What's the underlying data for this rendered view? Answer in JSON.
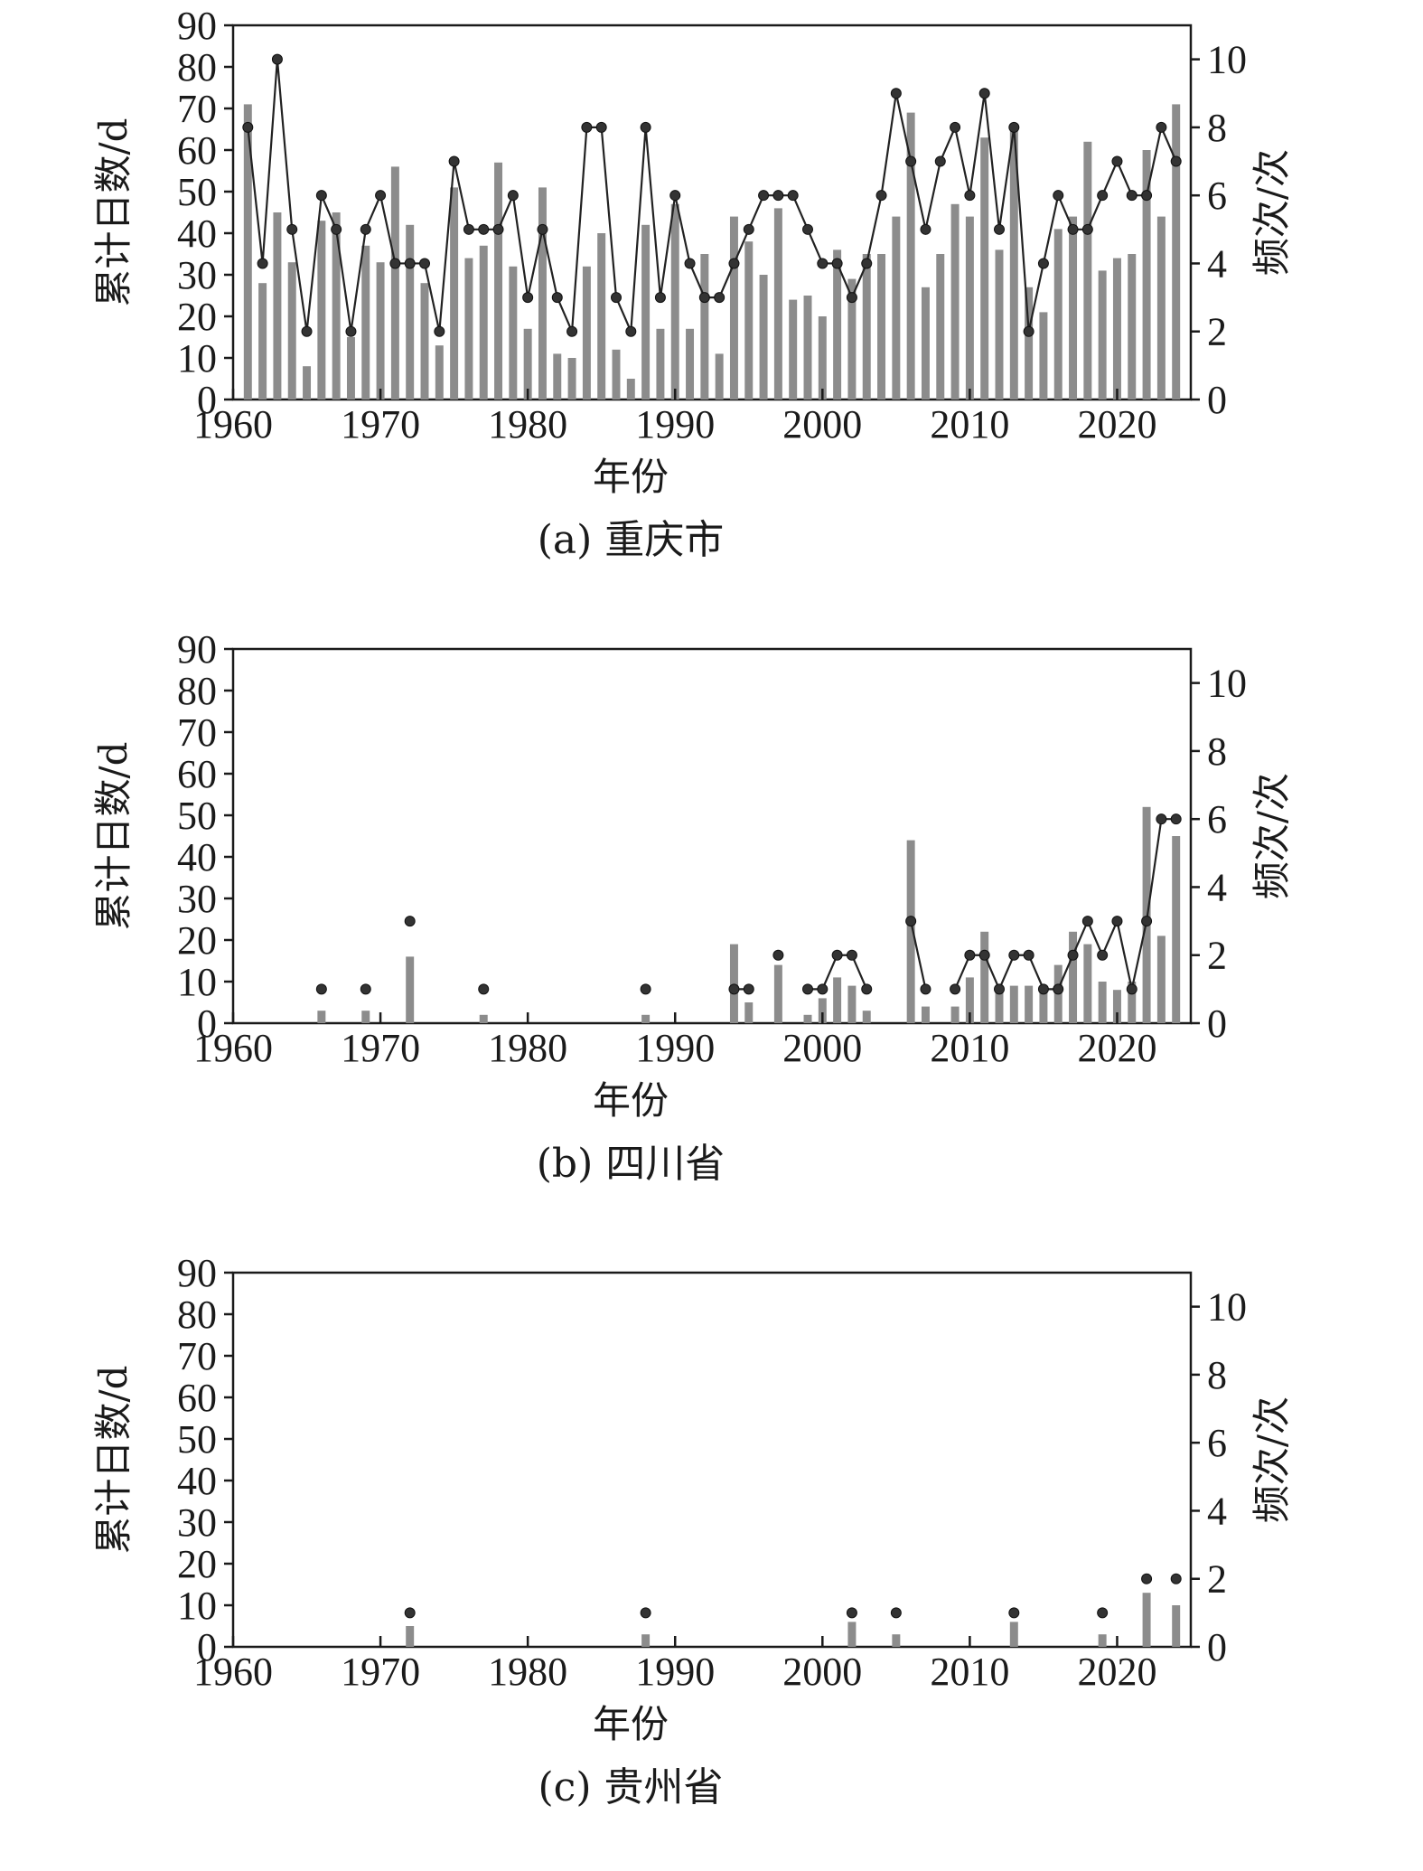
{
  "chart_data": [
    {
      "type": "bar",
      "caption": "(a) 重庆市",
      "xlabel": "年份",
      "ylabel_left": "累计日数/d",
      "ylabel_right": "频次/次",
      "x_ticks": [
        1960,
        1970,
        1980,
        1990,
        2000,
        2010,
        2020
      ],
      "y_ticks_left": [
        0,
        10,
        20,
        30,
        40,
        50,
        60,
        70,
        80,
        90
      ],
      "y_ticks_right": [
        0,
        2,
        4,
        6,
        8,
        10
      ],
      "xlim": [
        1960,
        2025
      ],
      "ylim_left": [
        0,
        90
      ],
      "ylim_right": [
        0,
        11
      ],
      "series": [
        {
          "name": "累计日数",
          "kind": "bar",
          "axis": "left",
          "color": "#8c8c8c",
          "x": [
            1961,
            1962,
            1963,
            1964,
            1965,
            1966,
            1967,
            1968,
            1969,
            1970,
            1971,
            1972,
            1973,
            1974,
            1975,
            1976,
            1977,
            1978,
            1979,
            1980,
            1981,
            1982,
            1983,
            1984,
            1985,
            1986,
            1987,
            1988,
            1989,
            1990,
            1991,
            1992,
            1993,
            1994,
            1995,
            1996,
            1997,
            1998,
            1999,
            2000,
            2001,
            2002,
            2003,
            2004,
            2005,
            2006,
            2007,
            2008,
            2009,
            2010,
            2011,
            2012,
            2013,
            2014,
            2015,
            2016,
            2017,
            2018,
            2019,
            2020,
            2021,
            2022,
            2023,
            2024
          ],
          "values": [
            71,
            28,
            45,
            33,
            8,
            43,
            45,
            15,
            37,
            33,
            56,
            42,
            28,
            13,
            51,
            34,
            37,
            57,
            32,
            17,
            51,
            11,
            10,
            32,
            40,
            12,
            5,
            42,
            17,
            47,
            17,
            35,
            11,
            44,
            38,
            30,
            46,
            24,
            25,
            20,
            36,
            29,
            35,
            35,
            44,
            69,
            27,
            35,
            47,
            44,
            63,
            36,
            66,
            27,
            21,
            41,
            44,
            62,
            31,
            34,
            35,
            60,
            44,
            71
          ]
        },
        {
          "name": "频次",
          "kind": "line",
          "axis": "right",
          "color": "#222222",
          "x": [
            1961,
            1962,
            1963,
            1964,
            1965,
            1966,
            1967,
            1968,
            1969,
            1970,
            1971,
            1972,
            1973,
            1974,
            1975,
            1976,
            1977,
            1978,
            1979,
            1980,
            1981,
            1982,
            1983,
            1984,
            1985,
            1986,
            1987,
            1988,
            1989,
            1990,
            1991,
            1992,
            1993,
            1994,
            1995,
            1996,
            1997,
            1998,
            1999,
            2000,
            2001,
            2002,
            2003,
            2004,
            2005,
            2006,
            2007,
            2008,
            2009,
            2010,
            2011,
            2012,
            2013,
            2014,
            2015,
            2016,
            2017,
            2018,
            2019,
            2020,
            2021,
            2022,
            2023,
            2024
          ],
          "values": [
            8,
            4,
            10,
            5,
            2,
            6,
            5,
            2,
            5,
            6,
            4,
            4,
            4,
            2,
            7,
            5,
            5,
            5,
            6,
            3,
            5,
            3,
            2,
            8,
            8,
            3,
            2,
            8,
            3,
            6,
            4,
            3,
            3,
            4,
            5,
            6,
            6,
            6,
            5,
            4,
            4,
            3,
            4,
            6,
            9,
            7,
            5,
            7,
            8,
            6,
            9,
            5,
            8,
            2,
            4,
            6,
            5,
            5,
            6,
            7,
            6,
            6,
            8,
            7
          ]
        }
      ]
    },
    {
      "type": "bar",
      "caption": "(b) 四川省",
      "xlabel": "年份",
      "ylabel_left": "累计日数/d",
      "ylabel_right": "频次/次",
      "x_ticks": [
        1960,
        1970,
        1980,
        1990,
        2000,
        2010,
        2020
      ],
      "y_ticks_left": [
        0,
        10,
        20,
        30,
        40,
        50,
        60,
        70,
        80,
        90
      ],
      "y_ticks_right": [
        0,
        2,
        4,
        6,
        8,
        10
      ],
      "xlim": [
        1960,
        2025
      ],
      "ylim_left": [
        0,
        90
      ],
      "ylim_right": [
        0,
        11
      ],
      "series": [
        {
          "name": "累计日数",
          "kind": "bar",
          "axis": "left",
          "color": "#8c8c8c",
          "x": [
            1966,
            1969,
            1972,
            1977,
            1988,
            1994,
            1995,
            1997,
            1999,
            2000,
            2001,
            2002,
            2003,
            2006,
            2007,
            2009,
            2010,
            2011,
            2012,
            2013,
            2014,
            2015,
            2016,
            2017,
            2018,
            2019,
            2020,
            2021,
            2022,
            2023,
            2024
          ],
          "values": [
            3,
            3,
            16,
            2,
            2,
            19,
            5,
            14,
            2,
            6,
            11,
            9,
            3,
            44,
            4,
            4,
            11,
            22,
            9,
            9,
            9,
            9,
            14,
            22,
            19,
            10,
            8,
            10,
            52,
            21,
            45
          ]
        },
        {
          "name": "频次",
          "kind": "line",
          "axis": "right",
          "color": "#222222",
          "x": [
            1966,
            1969,
            1972,
            1977,
            1988,
            1994,
            1995,
            1997,
            1999,
            2000,
            2001,
            2002,
            2003,
            2006,
            2007,
            2009,
            2010,
            2011,
            2012,
            2013,
            2014,
            2015,
            2016,
            2017,
            2018,
            2019,
            2020,
            2021,
            2022,
            2023,
            2024
          ],
          "values": [
            1,
            1,
            3,
            1,
            1,
            1,
            1,
            2,
            1,
            1,
            2,
            2,
            1,
            3,
            1,
            1,
            2,
            2,
            1,
            2,
            2,
            1,
            1,
            2,
            3,
            2,
            3,
            1,
            3,
            6,
            6
          ]
        }
      ]
    },
    {
      "type": "bar",
      "caption": "(c) 贵州省",
      "xlabel": "年份",
      "ylabel_left": "累计日数/d",
      "ylabel_right": "频次/次",
      "x_ticks": [
        1960,
        1970,
        1980,
        1990,
        2000,
        2010,
        2020
      ],
      "y_ticks_left": [
        0,
        10,
        20,
        30,
        40,
        50,
        60,
        70,
        80,
        90
      ],
      "y_ticks_right": [
        0,
        2,
        4,
        6,
        8,
        10
      ],
      "xlim": [
        1960,
        2025
      ],
      "ylim_left": [
        0,
        90
      ],
      "ylim_right": [
        0,
        11
      ],
      "series": [
        {
          "name": "累计日数",
          "kind": "bar",
          "axis": "left",
          "color": "#8c8c8c",
          "x": [
            1972,
            1988,
            2002,
            2005,
            2013,
            2019,
            2022,
            2024
          ],
          "values": [
            5,
            3,
            6,
            3,
            6,
            3,
            13,
            10
          ]
        },
        {
          "name": "频次",
          "kind": "line",
          "axis": "right",
          "color": "#222222",
          "x": [
            1972,
            1988,
            2002,
            2005,
            2013,
            2019,
            2022,
            2024
          ],
          "values": [
            1,
            1,
            1,
            1,
            1,
            1,
            2,
            2
          ]
        }
      ]
    }
  ]
}
